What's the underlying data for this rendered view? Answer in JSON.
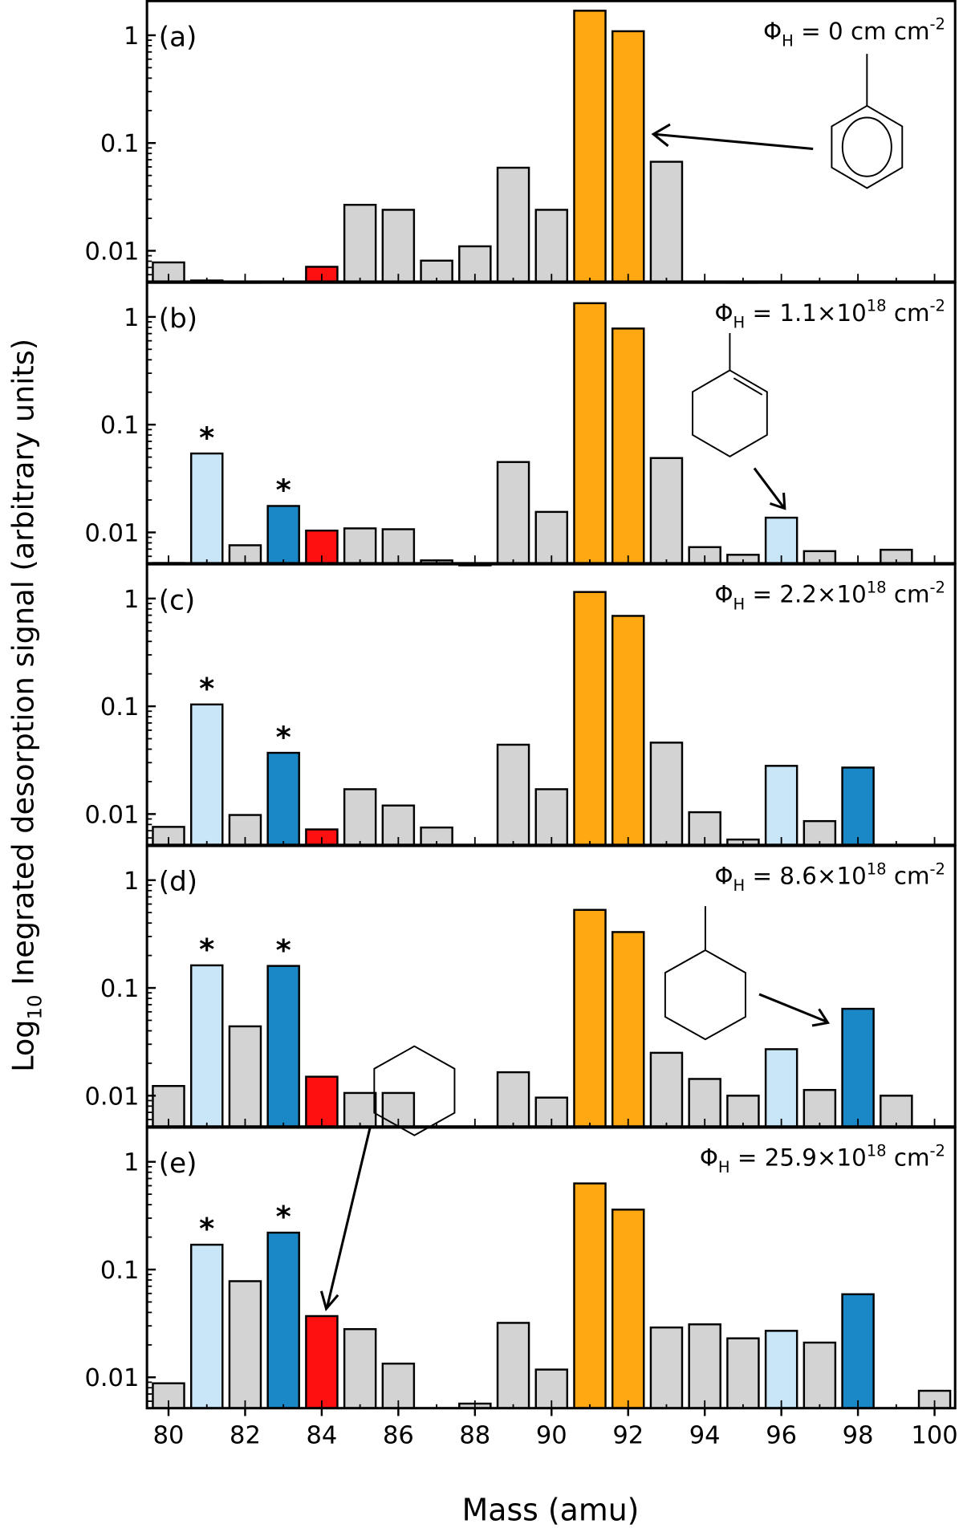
{
  "chart_data": {
    "type": "bar",
    "ylabel_prefix": "Log",
    "ylabel_sub": "10",
    "ylabel_rest": " Inegrated desorption signal (arbitrary units)",
    "xlabel": "Mass (amu)",
    "x": [
      80,
      81,
      82,
      83,
      84,
      85,
      86,
      87,
      88,
      89,
      90,
      91,
      92,
      93,
      94,
      95,
      96,
      97,
      98,
      99,
      100
    ],
    "xticklabels": [
      "80",
      "82",
      "84",
      "86",
      "88",
      "90",
      "92",
      "94",
      "96",
      "98",
      "100"
    ],
    "yticklabels": [
      "1",
      "0.1",
      "0.01"
    ],
    "ylim": [
      0.005,
      2.1
    ],
    "yscale": "log",
    "colors": {
      "grey": "#d3d3d3",
      "orange": "#ffa812",
      "red": "#ff1010",
      "lightblue": "#c9e6f8",
      "blue": "#1a88c6"
    },
    "panels": [
      {
        "label": "(a)",
        "flux": {
          "pre": "Φ",
          "sub": "H",
          "eq": " = 0 cm",
          "sup": "",
          "sup2": "-2"
        },
        "values": [
          0.0078,
          0.0053,
          0.0051,
          null,
          0.0071,
          0.0267,
          0.024,
          0.0081,
          0.011,
          0.059,
          0.024,
          1.69,
          1.09,
          0.067,
          null,
          0.0051,
          null,
          null,
          null,
          null,
          null
        ],
        "colors": [
          "grey",
          "grey",
          "grey",
          null,
          "red",
          "grey",
          "grey",
          "grey",
          "grey",
          "grey",
          "grey",
          "orange",
          "orange",
          "grey",
          null,
          "grey",
          null,
          null,
          null,
          null,
          null
        ],
        "stars": []
      },
      {
        "label": "(b)",
        "flux": {
          "pre": "Φ",
          "sub": "H",
          "eq": " = 1.1×10",
          "sup": "18",
          "sup2": "-2"
        },
        "values": [
          0.0052,
          0.054,
          0.0076,
          0.0176,
          0.0104,
          0.0109,
          0.0107,
          0.0055,
          0.005,
          0.045,
          0.0155,
          1.34,
          0.78,
          0.049,
          0.0073,
          0.0062,
          0.0137,
          0.0067,
          null,
          0.0069,
          null
        ],
        "colors": [
          "grey",
          "lightblue",
          "grey",
          "blue",
          "red",
          "grey",
          "grey",
          "grey",
          "grey",
          "grey",
          "grey",
          "orange",
          "orange",
          "grey",
          "grey",
          "grey",
          "lightblue",
          "grey",
          null,
          "grey",
          null
        ],
        "stars": [
          81,
          83
        ]
      },
      {
        "label": "(c)",
        "flux": {
          "pre": "Φ",
          "sub": "H",
          "eq": " = 2.2×10",
          "sup": "18",
          "sup2": "-2"
        },
        "values": [
          0.0076,
          0.104,
          0.0098,
          0.037,
          0.0072,
          0.017,
          0.012,
          0.0075,
          null,
          0.044,
          0.017,
          1.15,
          0.69,
          0.046,
          0.0104,
          0.0058,
          0.028,
          0.0086,
          0.027,
          null,
          null
        ],
        "colors": [
          "grey",
          "lightblue",
          "grey",
          "blue",
          "red",
          "grey",
          "grey",
          "grey",
          null,
          "grey",
          "grey",
          "orange",
          "orange",
          "grey",
          "grey",
          "grey",
          "lightblue",
          "grey",
          "blue",
          null,
          null
        ],
        "stars": [
          81,
          83
        ]
      },
      {
        "label": "(d)",
        "flux": {
          "pre": "Φ",
          "sub": "H",
          "eq": " = 8.6×10",
          "sup": "18",
          "sup2": "-2"
        },
        "values": [
          0.0123,
          0.162,
          0.044,
          0.16,
          0.015,
          0.0106,
          0.0106,
          null,
          null,
          0.0165,
          0.0096,
          0.53,
          0.33,
          0.025,
          0.0143,
          0.01,
          0.027,
          0.0113,
          0.064,
          0.01,
          null
        ],
        "colors": [
          "grey",
          "lightblue",
          "grey",
          "blue",
          "red",
          "grey",
          "grey",
          null,
          null,
          "grey",
          "grey",
          "orange",
          "orange",
          "grey",
          "grey",
          "grey",
          "lightblue",
          "grey",
          "blue",
          "grey",
          null
        ],
        "stars": [
          81,
          83
        ]
      },
      {
        "label": "(e)",
        "flux": {
          "pre": "Φ",
          "sub": "H",
          "eq": " = 25.9×10",
          "sup": "18",
          "sup2": "-2"
        },
        "values": [
          0.0088,
          0.17,
          0.078,
          0.22,
          0.037,
          0.028,
          0.0134,
          null,
          0.0057,
          0.032,
          0.0118,
          0.63,
          0.36,
          0.029,
          0.031,
          0.023,
          0.027,
          0.021,
          0.059,
          null,
          0.0075
        ],
        "colors": [
          "grey",
          "lightblue",
          "grey",
          "blue",
          "red",
          "grey",
          "grey",
          null,
          "grey",
          "grey",
          "grey",
          "orange",
          "orange",
          "grey",
          "grey",
          "grey",
          "lightblue",
          "grey",
          "blue",
          null,
          "grey"
        ],
        "stars": [
          81,
          83
        ]
      }
    ],
    "star_symbol": "*"
  }
}
